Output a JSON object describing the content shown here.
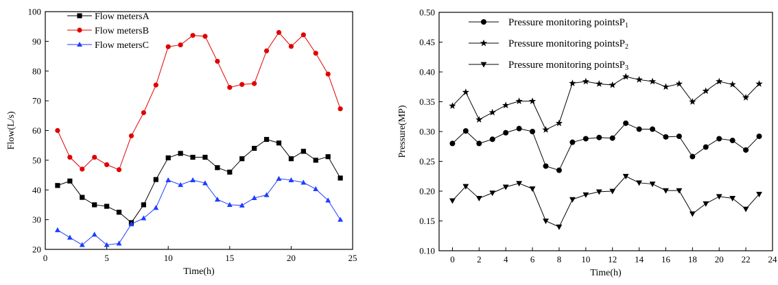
{
  "chart_data": [
    {
      "type": "line",
      "xlabel": "Time(h)",
      "ylabel": "Flow(L/s)",
      "xlim": [
        0,
        25
      ],
      "ylim": [
        20,
        100
      ],
      "xticks": [
        0,
        5,
        10,
        15,
        20,
        25
      ],
      "yticks": [
        20,
        30,
        40,
        50,
        60,
        70,
        80,
        90,
        100
      ],
      "grid": false,
      "legend_position": "top-left",
      "x": [
        1,
        2,
        3,
        4,
        5,
        6,
        7,
        8,
        9,
        10,
        11,
        12,
        13,
        14,
        15,
        16,
        17,
        18,
        19,
        20,
        21,
        22,
        23,
        24
      ],
      "series": [
        {
          "name": "Flow metersA",
          "color": "#000000",
          "marker": "square",
          "values": [
            41.5,
            43,
            37.5,
            35,
            34.5,
            32.5,
            29,
            35,
            43.5,
            50.8,
            52.3,
            51,
            51,
            47.5,
            46,
            50.5,
            54,
            57,
            55.8,
            50.5,
            53,
            50,
            51.2,
            44
          ]
        },
        {
          "name": "Flow metersB",
          "color": "#e00000",
          "marker": "circle",
          "values": [
            60,
            51,
            47,
            51,
            48.5,
            46.8,
            58.2,
            66,
            75.3,
            88.2,
            88.8,
            92,
            91.7,
            83.3,
            74.5,
            75.5,
            75.8,
            86.8,
            93,
            88.3,
            92.2,
            86,
            79,
            67.3
          ]
        },
        {
          "name": "Flow metersC",
          "color": "#1f3dff",
          "marker": "triangle",
          "values": [
            26.5,
            24,
            21.5,
            25,
            21.5,
            22,
            28.5,
            30.5,
            34,
            43.3,
            41.7,
            43.3,
            42.3,
            36.8,
            35,
            34.8,
            37.3,
            38.3,
            43.8,
            43.3,
            42.5,
            40.3,
            36.5,
            30
          ]
        }
      ]
    },
    {
      "type": "line",
      "xlabel": "Time(h)",
      "ylabel": "Pressure(MP)",
      "xlim": [
        -1,
        24
      ],
      "ylim": [
        0.1,
        0.5
      ],
      "xticks": [
        0,
        2,
        4,
        6,
        8,
        10,
        12,
        14,
        16,
        18,
        20,
        22,
        24
      ],
      "yticks": [
        "0.10",
        "0.15",
        "0.20",
        "0.25",
        "0.30",
        "0.35",
        "0.40",
        "0.45",
        "0.50"
      ],
      "grid": false,
      "legend_position": "top-left",
      "x": [
        0,
        1,
        2,
        3,
        4,
        5,
        6,
        7,
        8,
        9,
        10,
        11,
        12,
        13,
        14,
        15,
        16,
        17,
        18,
        19,
        20,
        21,
        22,
        23
      ],
      "series": [
        {
          "name": "Pressure monitoring pointsP",
          "subscript": "1",
          "color": "#000000",
          "marker": "circle",
          "values": [
            0.28,
            0.301,
            0.28,
            0.287,
            0.298,
            0.305,
            0.3,
            0.242,
            0.235,
            0.282,
            0.288,
            0.29,
            0.289,
            0.314,
            0.304,
            0.304,
            0.291,
            0.292,
            0.258,
            0.274,
            0.288,
            0.285,
            0.269,
            0.292
          ]
        },
        {
          "name": "Pressure monitoring pointsP",
          "subscript": "2",
          "color": "#000000",
          "marker": "star",
          "values": [
            0.343,
            0.366,
            0.32,
            0.332,
            0.344,
            0.351,
            0.351,
            0.303,
            0.314,
            0.381,
            0.384,
            0.38,
            0.378,
            0.392,
            0.387,
            0.384,
            0.375,
            0.38,
            0.35,
            0.368,
            0.384,
            0.379,
            0.357,
            0.38
          ]
        },
        {
          "name": "Pressure monitoring pointsP",
          "subscript": "3",
          "color": "#000000",
          "marker": "triangle-down",
          "values": [
            0.184,
            0.208,
            0.188,
            0.197,
            0.207,
            0.213,
            0.204,
            0.15,
            0.14,
            0.186,
            0.194,
            0.199,
            0.2,
            0.225,
            0.214,
            0.212,
            0.201,
            0.201,
            0.162,
            0.179,
            0.191,
            0.188,
            0.17,
            0.195
          ]
        }
      ]
    }
  ]
}
